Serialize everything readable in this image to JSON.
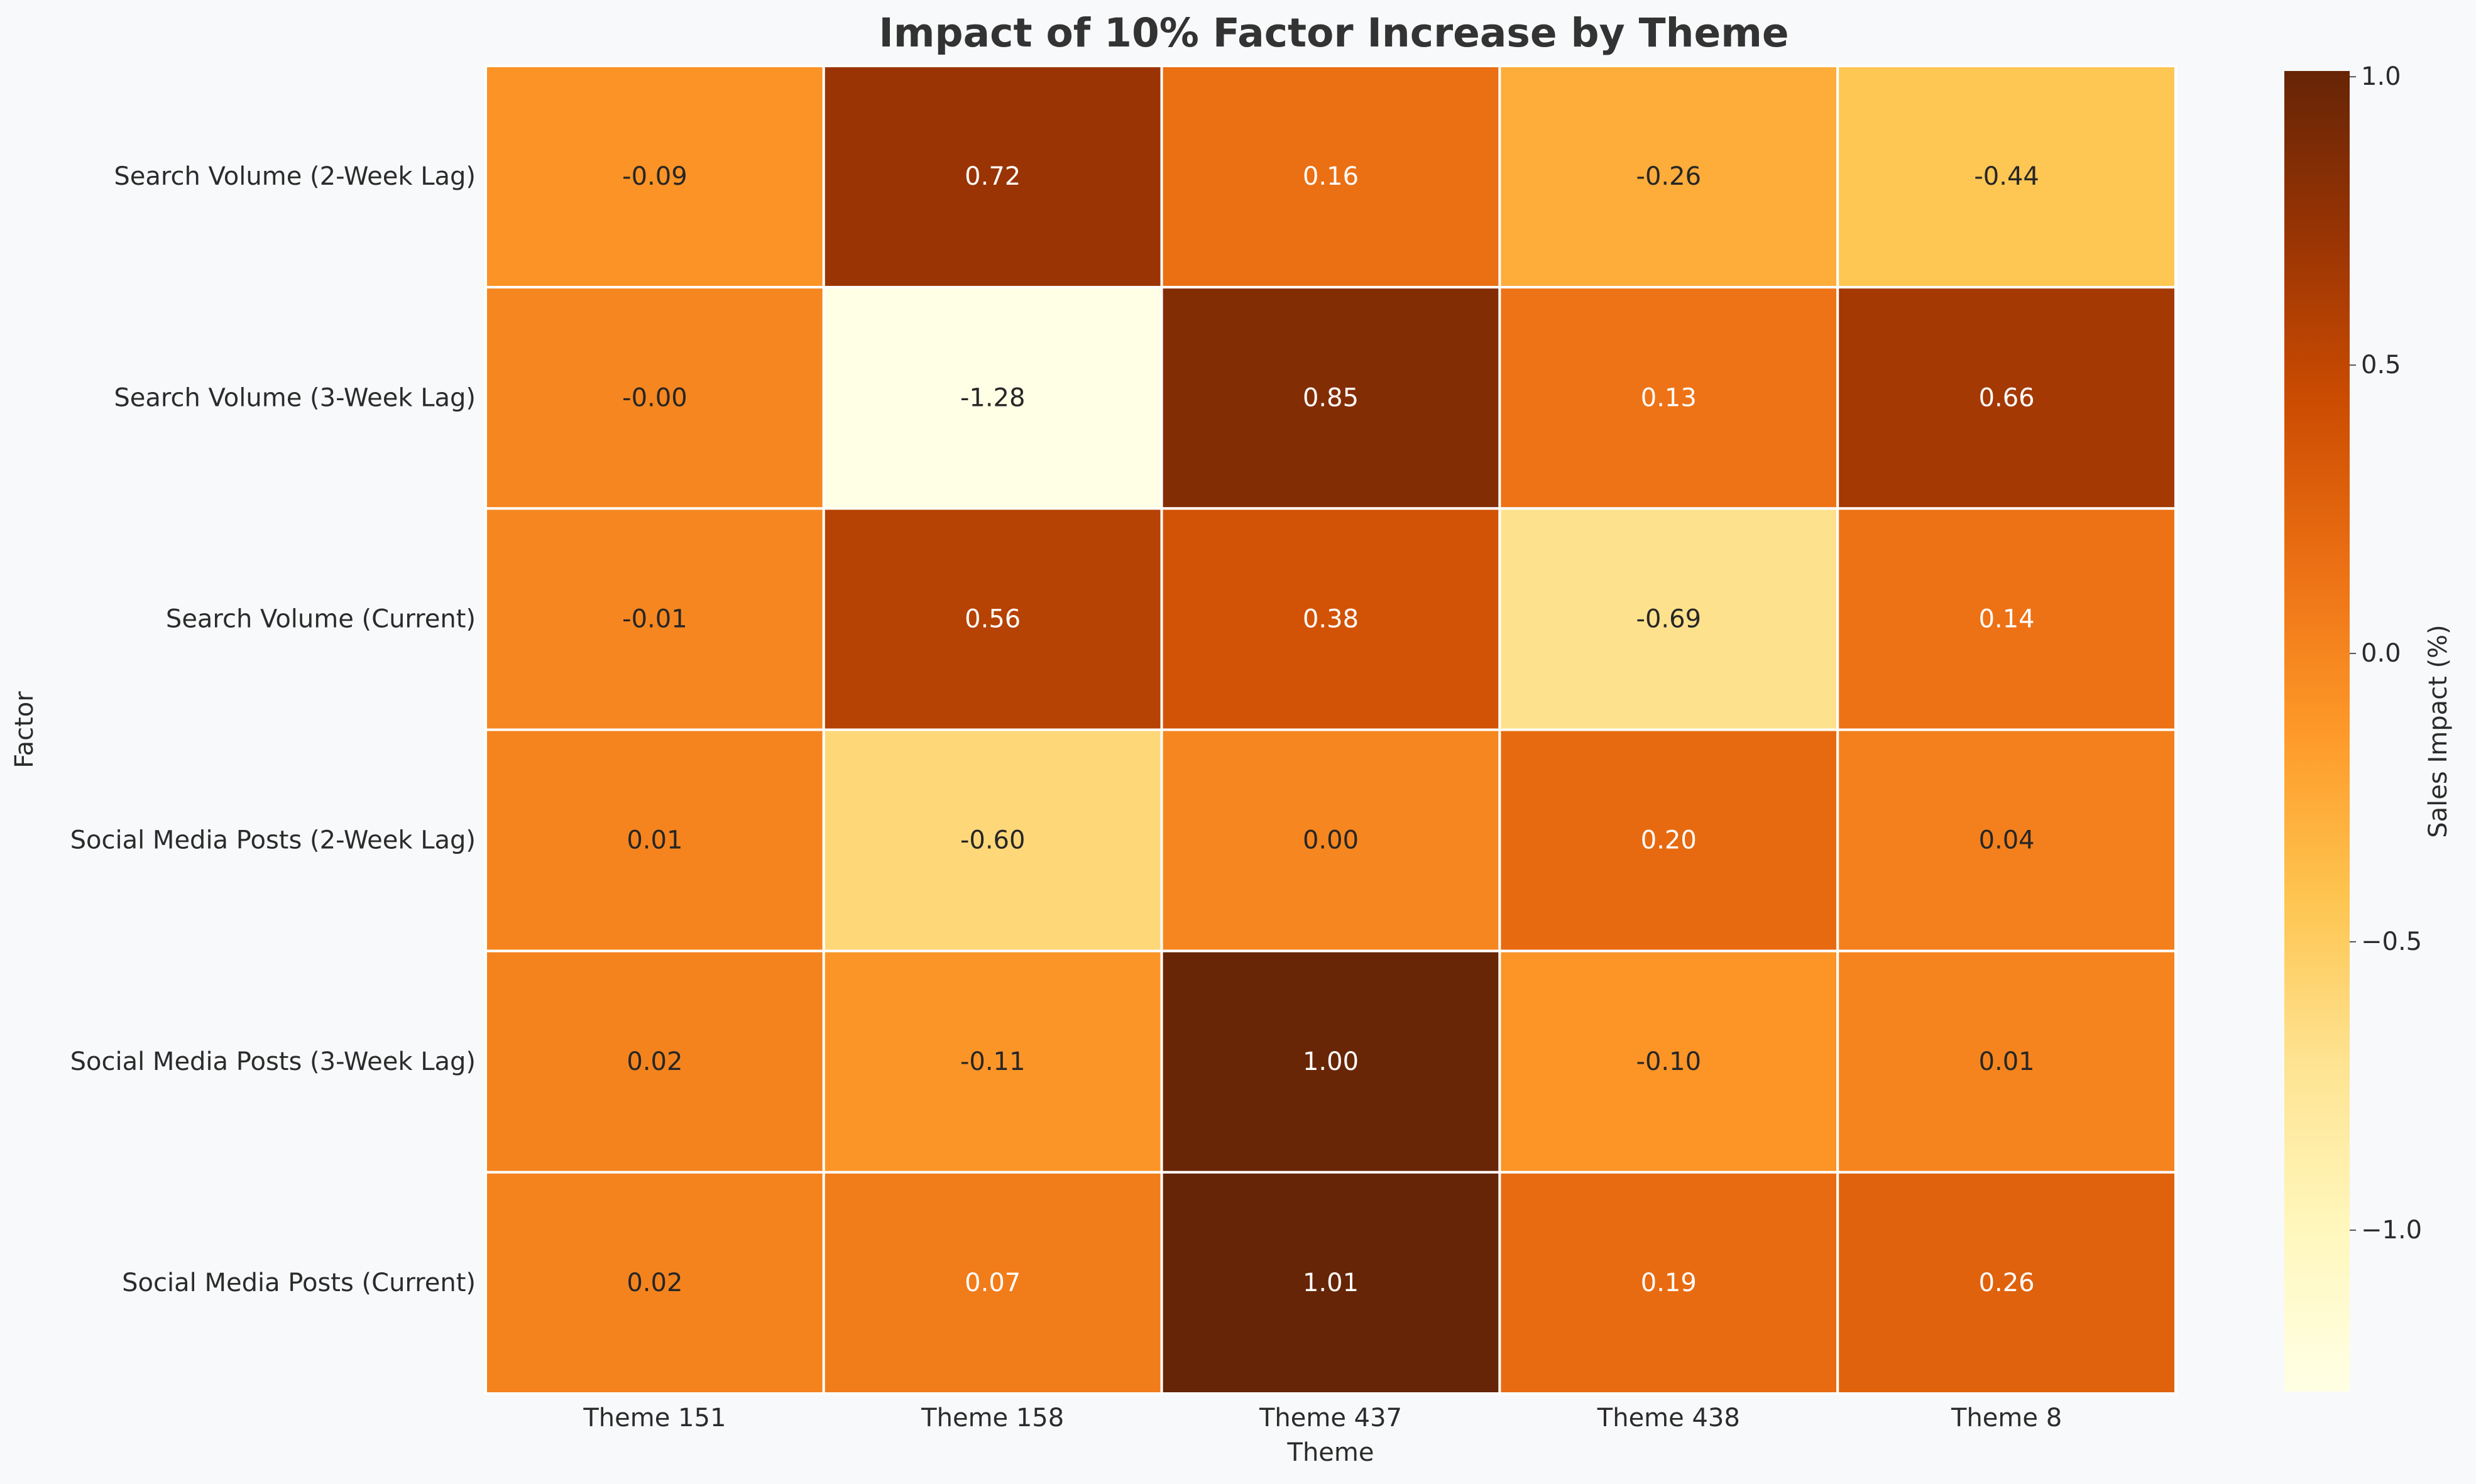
{
  "chart_data": {
    "type": "heatmap",
    "title": "Impact of 10% Factor Increase by Theme",
    "xlabel": "Theme",
    "ylabel": "Factor",
    "x_categories": [
      "Theme 151",
      "Theme 158",
      "Theme 437",
      "Theme 438",
      "Theme 8"
    ],
    "y_categories": [
      "Search Volume (2-Week Lag)",
      "Search Volume (3-Week Lag)",
      "Search Volume (Current)",
      "Social Media Posts (2-Week Lag)",
      "Social Media Posts (3-Week Lag)",
      "Social Media Posts (Current)"
    ],
    "values": [
      [
        -0.09,
        0.72,
        0.16,
        -0.26,
        -0.44
      ],
      [
        -0.0,
        -1.28,
        0.85,
        0.13,
        0.66
      ],
      [
        -0.01,
        0.56,
        0.38,
        -0.69,
        0.14
      ],
      [
        0.01,
        -0.6,
        0.0,
        0.2,
        0.04
      ],
      [
        0.02,
        -0.11,
        1.0,
        -0.1,
        0.01
      ],
      [
        0.02,
        0.07,
        1.01,
        0.19,
        0.26
      ]
    ],
    "value_labels": [
      [
        "-0.09",
        "0.72",
        "0.16",
        "-0.26",
        "-0.44"
      ],
      [
        "-0.00",
        "-1.28",
        "0.85",
        "0.13",
        "0.66"
      ],
      [
        "-0.01",
        "0.56",
        "0.38",
        "-0.69",
        "0.14"
      ],
      [
        "0.01",
        "-0.60",
        "0.00",
        "0.20",
        "0.04"
      ],
      [
        "0.02",
        "-0.11",
        "1.00",
        "-0.10",
        "0.01"
      ],
      [
        "0.02",
        "0.07",
        "1.01",
        "0.19",
        "0.26"
      ]
    ],
    "colorbar": {
      "label": "Sales Impact (%)",
      "range": [
        -1.28,
        1.01
      ],
      "ticks": [
        1.0,
        0.5,
        0.0,
        -0.5,
        -1.0
      ],
      "tick_labels": [
        "1.0",
        "0.5",
        "0.0",
        "−0.5",
        "−1.0"
      ],
      "colormap": "YlOrBr"
    },
    "grid": false
  }
}
